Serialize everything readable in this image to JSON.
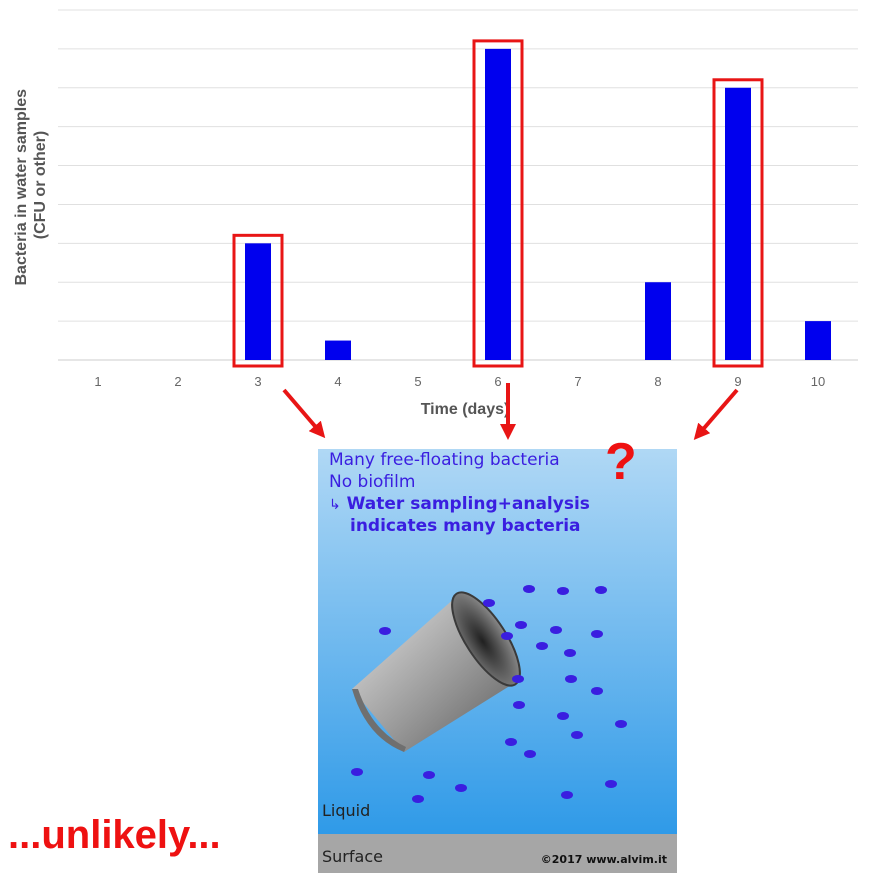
{
  "chart_data": {
    "type": "bar",
    "categories": [
      "1",
      "2",
      "3",
      "4",
      "5",
      "6",
      "7",
      "8",
      "9",
      "10"
    ],
    "values": [
      0,
      0,
      3,
      0.5,
      0,
      8,
      0,
      2,
      7,
      1
    ],
    "highlighted": [
      "3",
      "6",
      "9"
    ],
    "xlabel": "Time (days)",
    "ylabel_line1": "Bacteria in water samples",
    "ylabel_line2": "(CFU or other)",
    "ylim": [
      0,
      9
    ],
    "grid": true,
    "bar_color": "#0000ee",
    "highlight_color": "#e81515"
  },
  "illustration": {
    "caption_line1": "Many free-floating bacteria",
    "caption_line2": "No biofilm",
    "caption_arrow": "↳",
    "caption_line3": "Water sampling+analysis",
    "caption_line4": "indicates many bacteria",
    "liquid_label": "Liquid",
    "surface_label": "Surface",
    "copyright": "©2017 www.alvim.it",
    "water_top_color": "#b0d8f5",
    "water_bottom_color": "#2f9ae8",
    "surface_color": "#a6a6a6",
    "bacteria_color": "#3a1ee0"
  },
  "question_mark": "?",
  "verdict": "...unlikely..."
}
